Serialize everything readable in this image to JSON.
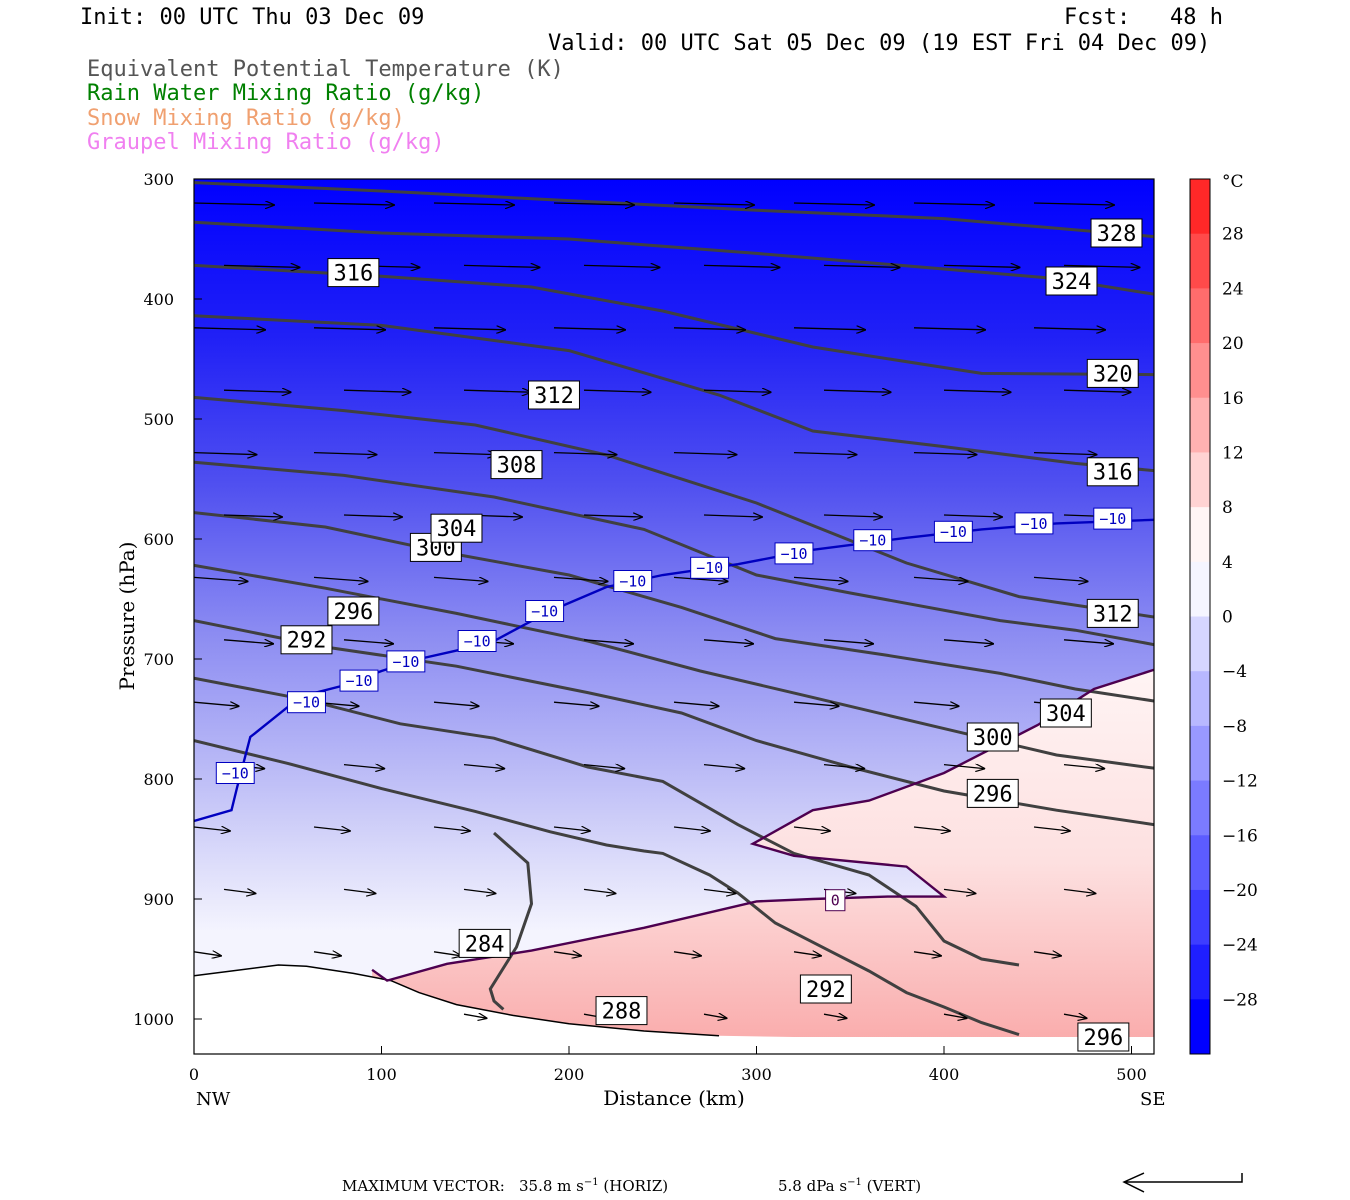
{
  "header": {
    "init": "Init: 00 UTC Thu 03 Dec 09",
    "fcst": "Fcst:   48 h",
    "valid": "Valid: 00 UTC Sat 05 Dec 09 (19 EST Fri 04 Dec 09)"
  },
  "legend": [
    {
      "label": "Equivalent Potential Temperature (K)",
      "color": "#404040"
    },
    {
      "label": "Rain Water Mixing Ratio (g/kg)",
      "color": "#008000"
    },
    {
      "label": "Snow Mixing Ratio (g/kg)",
      "color": "#f0a070"
    },
    {
      "label": "Graupel Mixing Ratio (g/kg)",
      "color": "#f080f0"
    }
  ],
  "chart_data": {
    "type": "cross-section (filled contour + contour lines + wind vectors)",
    "xlabel": "Distance (km)",
    "ylabel": "Pressure (hPa)",
    "xlim": [
      0,
      512
    ],
    "ylim": [
      1030,
      300
    ],
    "x_ticks": [
      "0",
      "100",
      "200",
      "300",
      "400",
      "500"
    ],
    "y_ticks": [
      "300",
      "400",
      "500",
      "600",
      "700",
      "800",
      "900",
      "1000"
    ],
    "left_end_label": "NW",
    "right_end_label": "SE",
    "colorbar": {
      "unit": "°C",
      "ticks": [
        "28",
        "24",
        "20",
        "16",
        "12",
        "8",
        "4",
        "0",
        "−4",
        "−8",
        "−12",
        "−16",
        "−20",
        "−24",
        "−28"
      ]
    },
    "theta_e_contours": [
      {
        "label": "328",
        "points": [
          [
            0,
            303
          ],
          [
            100,
            310
          ],
          [
            200,
            318
          ],
          [
            300,
            326
          ],
          [
            400,
            333
          ],
          [
            512,
            348
          ]
        ],
        "label_at": [
          492,
          345
        ]
      },
      {
        "label": "324",
        "points": [
          [
            0,
            336
          ],
          [
            100,
            345
          ],
          [
            200,
            350
          ],
          [
            300,
            362
          ],
          [
            400,
            375
          ],
          [
            460,
            383
          ],
          [
            512,
            396
          ]
        ],
        "label_at": [
          468,
          385
        ]
      },
      {
        "label": "320",
        "points": [
          [
            0,
            372
          ],
          [
            100,
            381
          ],
          [
            180,
            390
          ],
          [
            250,
            410
          ],
          [
            330,
            440
          ],
          [
            420,
            462
          ],
          [
            512,
            463
          ]
        ],
        "label_at": [
          490,
          462
        ]
      },
      {
        "label": "316",
        "points": [
          [
            0,
            414
          ],
          [
            100,
            422
          ],
          [
            200,
            443
          ],
          [
            280,
            480
          ],
          [
            330,
            510
          ],
          [
            400,
            523
          ],
          [
            470,
            537
          ],
          [
            512,
            543
          ]
        ],
        "label_at": [
          490,
          544
        ]
      },
      {
        "label": "312",
        "points": [
          [
            0,
            482
          ],
          [
            80,
            493
          ],
          [
            150,
            505
          ],
          [
            220,
            530
          ],
          [
            300,
            570
          ],
          [
            380,
            620
          ],
          [
            440,
            648
          ],
          [
            512,
            665
          ]
        ],
        "label_at": [
          490,
          662
        ]
      },
      {
        "label": "308",
        "points": [
          [
            0,
            536
          ],
          [
            80,
            547
          ],
          [
            160,
            565
          ],
          [
            240,
            592
          ],
          [
            300,
            630
          ],
          [
            350,
            645
          ],
          [
            430,
            668
          ],
          [
            470,
            676
          ],
          [
            512,
            688
          ]
        ],
        "label_at": [
          172,
          538
        ]
      },
      {
        "label": "304",
        "points": [
          [
            0,
            578
          ],
          [
            70,
            590
          ],
          [
            130,
            610
          ],
          [
            200,
            630
          ],
          [
            260,
            657
          ],
          [
            310,
            683
          ],
          [
            370,
            697
          ],
          [
            430,
            712
          ],
          [
            470,
            725
          ],
          [
            512,
            735
          ]
        ],
        "label_at": [
          465,
          745
        ]
      },
      {
        "label": "300",
        "points": [
          [
            0,
            622
          ],
          [
            70,
            641
          ],
          [
            140,
            662
          ],
          [
            210,
            685
          ],
          [
            270,
            710
          ],
          [
            330,
            732
          ],
          [
            400,
            758
          ],
          [
            460,
            780
          ],
          [
            512,
            791
          ]
        ],
        "label_at": [
          129,
          607
        ]
      },
      {
        "label": "296",
        "points": [
          [
            0,
            668
          ],
          [
            70,
            690
          ],
          [
            140,
            706
          ],
          [
            210,
            728
          ],
          [
            260,
            745
          ],
          [
            300,
            768
          ],
          [
            350,
            790
          ],
          [
            400,
            810
          ],
          [
            460,
            826
          ],
          [
            512,
            838
          ]
        ],
        "label_at": [
          85,
          660
        ]
      },
      {
        "label": "292",
        "points": [
          [
            0,
            716
          ],
          [
            60,
            734
          ],
          [
            110,
            754
          ],
          [
            160,
            766
          ],
          [
            210,
            790
          ],
          [
            250,
            802
          ],
          [
            290,
            838
          ],
          [
            320,
            862
          ],
          [
            360,
            880
          ],
          [
            385,
            906
          ],
          [
            400,
            935
          ],
          [
            420,
            950
          ],
          [
            440,
            955
          ]
        ],
        "label_at": [
          60,
          684
        ]
      },
      {
        "label": "288",
        "points": [
          [
            0,
            768
          ],
          [
            50,
            787
          ],
          [
            100,
            808
          ],
          [
            150,
            827
          ],
          [
            190,
            844
          ],
          [
            220,
            855
          ],
          [
            240,
            860
          ],
          [
            250,
            862
          ],
          [
            275,
            880
          ],
          [
            290,
            895
          ],
          [
            310,
            920
          ],
          [
            340,
            944
          ],
          [
            360,
            960
          ],
          [
            380,
            978
          ],
          [
            400,
            990
          ],
          [
            420,
            1003
          ],
          [
            440,
            1013
          ]
        ],
        "label_at": [
          228,
          993
        ]
      },
      {
        "label": "284",
        "points": [
          [
            160,
            845
          ],
          [
            178,
            870
          ],
          [
            180,
            904
          ],
          [
            172,
            940
          ],
          [
            158,
            975
          ],
          [
            160,
            985
          ],
          [
            165,
            992
          ]
        ],
        "label_at": [
          155,
          937
        ]
      }
    ],
    "extra_labels": [
      {
        "label": "316",
        "at": [
          85,
          378
        ]
      },
      {
        "label": "312",
        "at": [
          192,
          480
        ]
      },
      {
        "label": "304",
        "at": [
          140,
          591
        ]
      },
      {
        "label": "300",
        "at": [
          426,
          765
        ]
      },
      {
        "label": "296",
        "at": [
          426,
          812
        ]
      },
      {
        "label": "292",
        "at": [
          337,
          975
        ]
      },
      {
        "label": "296",
        "at": [
          485,
          1015
        ]
      }
    ],
    "temperature_contours": [
      {
        "label": "−10",
        "color": "#0000c0",
        "points": [
          [
            0,
            835
          ],
          [
            20,
            826
          ],
          [
            23,
            807
          ],
          [
            30,
            765
          ],
          [
            50,
            740
          ],
          [
            60,
            730
          ],
          [
            80,
            722
          ],
          [
            100,
            710
          ],
          [
            120,
            700
          ],
          [
            140,
            693
          ],
          [
            160,
            685
          ],
          [
            190,
            660
          ],
          [
            220,
            640
          ],
          [
            250,
            630
          ],
          [
            290,
            621
          ],
          [
            330,
            609
          ],
          [
            380,
            599
          ],
          [
            420,
            592
          ],
          [
            460,
            587
          ],
          [
            512,
            584
          ]
        ],
        "label_points": [
          [
            22,
            795
          ],
          [
            60,
            736
          ],
          [
            88,
            718
          ],
          [
            113,
            702
          ],
          [
            151,
            685
          ],
          [
            187,
            660
          ],
          [
            234,
            635
          ],
          [
            275,
            624
          ],
          [
            320,
            612
          ],
          [
            362,
            601
          ],
          [
            405,
            594
          ],
          [
            448,
            587
          ],
          [
            490,
            583
          ]
        ]
      },
      {
        "label": "0",
        "color": "#4d0050",
        "points": [
          [
            95,
            959
          ],
          [
            103,
            968
          ],
          [
            135,
            954
          ],
          [
            180,
            943
          ],
          [
            240,
            924
          ],
          [
            300,
            902
          ],
          [
            330,
            900
          ],
          [
            370,
            898
          ],
          [
            400,
            898
          ],
          [
            380,
            873
          ],
          [
            320,
            864
          ],
          [
            298,
            854
          ],
          [
            330,
            826
          ],
          [
            360,
            818
          ],
          [
            400,
            795
          ],
          [
            450,
            755
          ],
          [
            480,
            725
          ],
          [
            512,
            709
          ]
        ],
        "label_points": [
          [
            342,
            901
          ]
        ]
      }
    ],
    "wind_vectors_note": "Wind vectors (mostly westerly, stronger aloft)",
    "max_vector": {
      "label": "MAXIMUM VECTOR:",
      "horiz": "35.8 m s",
      "horiz_unit": "(HORIZ)",
      "vert": "5.8 dPa s",
      "vert_unit": "(VERT)",
      "exponent": "−1"
    }
  }
}
